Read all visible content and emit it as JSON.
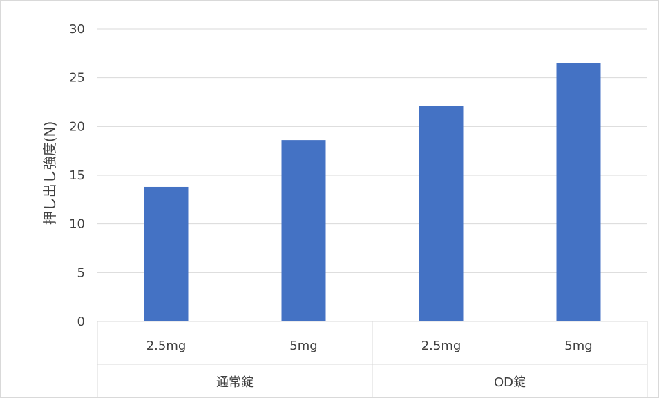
{
  "chart_data": {
    "type": "bar",
    "ylabel": "押し出し強度(N)",
    "ylim": [
      0,
      30
    ],
    "yticks": [
      "0",
      "5",
      "10",
      "15",
      "20",
      "25",
      "30"
    ],
    "categories": [
      "2.5mg",
      "5mg",
      "2.5mg",
      "5mg"
    ],
    "groups": [
      {
        "label": "通常錠",
        "categories": [
          "2.5mg",
          "5mg"
        ]
      },
      {
        "label": "OD錠",
        "categories": [
          "2.5mg",
          "5mg"
        ]
      }
    ],
    "values": [
      13.8,
      18.6,
      22.1,
      26.5
    ],
    "grid": true,
    "legend": "none",
    "bar_color": "#4472C4",
    "grid_color": "#d9d9d9"
  }
}
